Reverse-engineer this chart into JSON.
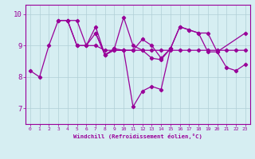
{
  "background_color": "#d6eef2",
  "grid_color": "#b0cfd6",
  "line_color": "#990099",
  "xlim": [
    -0.5,
    23.5
  ],
  "ylim": [
    6.5,
    10.3
  ],
  "yticks": [
    7,
    8,
    9,
    10
  ],
  "xticks": [
    0,
    1,
    2,
    3,
    4,
    5,
    6,
    7,
    8,
    9,
    10,
    11,
    12,
    13,
    14,
    15,
    16,
    17,
    18,
    19,
    20,
    21,
    22,
    23
  ],
  "xlabel": "Windchill (Refroidissement éolien,°C)",
  "series1_x": [
    0,
    1,
    2,
    3,
    4,
    5,
    6,
    7,
    8,
    9,
    10,
    11,
    12,
    13,
    14,
    15,
    16,
    17,
    18,
    19,
    20,
    21,
    22,
    23
  ],
  "series1_y": [
    8.2,
    8.0,
    9.0,
    9.8,
    9.8,
    9.0,
    9.0,
    9.6,
    8.7,
    8.9,
    9.9,
    9.0,
    8.85,
    8.6,
    8.55,
    8.9,
    9.6,
    9.5,
    9.4,
    8.8,
    8.8,
    8.3,
    8.2,
    8.4
  ],
  "series2_x": [
    7,
    8,
    9,
    10,
    11,
    12,
    13,
    14,
    15
  ],
  "series2_y": [
    9.4,
    8.7,
    8.9,
    8.85,
    7.05,
    7.55,
    7.7,
    7.6,
    8.9
  ],
  "series3_x": [
    4,
    5,
    6,
    7,
    8,
    9,
    10,
    11,
    12,
    13,
    14,
    15,
    16,
    17,
    18,
    19,
    20,
    23
  ],
  "series3_y": [
    9.8,
    9.8,
    9.0,
    9.4,
    8.7,
    8.85,
    8.85,
    8.85,
    9.2,
    9.0,
    8.6,
    8.9,
    9.6,
    9.5,
    9.4,
    9.4,
    8.8,
    9.4
  ],
  "series4_x": [
    3,
    4,
    5,
    6,
    7,
    8,
    9,
    10,
    11,
    12,
    13,
    14,
    15,
    16,
    17,
    18,
    19,
    20,
    21,
    22,
    23
  ],
  "series4_y": [
    9.8,
    9.8,
    9.0,
    9.0,
    9.0,
    8.85,
    8.85,
    8.85,
    8.85,
    8.85,
    8.85,
    8.85,
    8.85,
    8.85,
    8.85,
    8.85,
    8.85,
    8.85,
    8.85,
    8.85,
    8.85
  ]
}
